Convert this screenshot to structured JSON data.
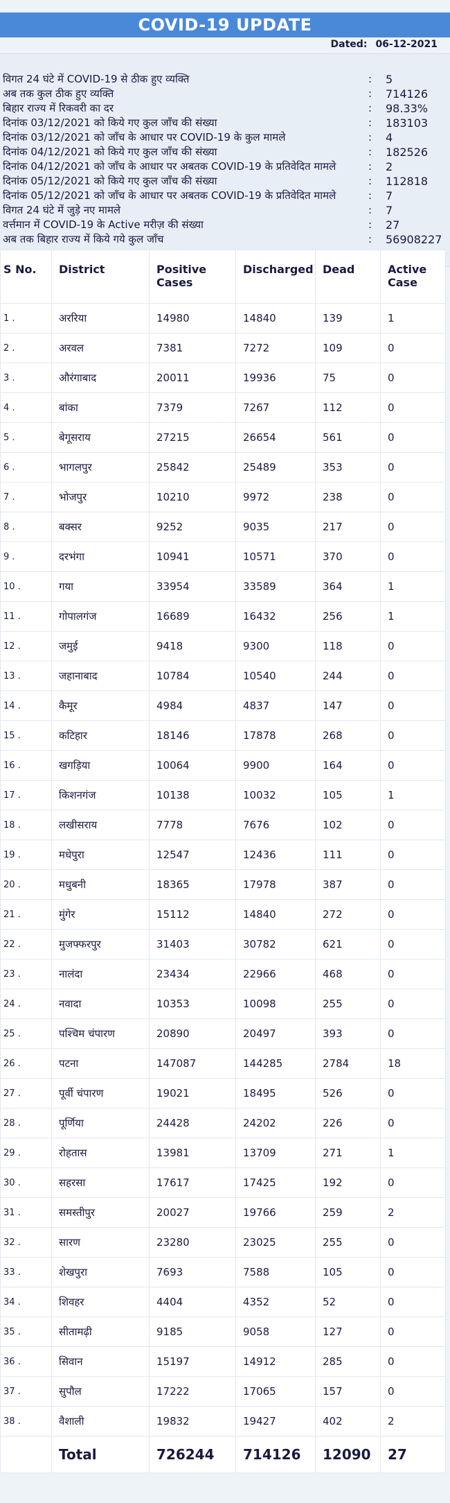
{
  "header": {
    "title": "COVID-19 UPDATE"
  },
  "dated": {
    "label": "Dated:",
    "value": "06-12-2021"
  },
  "summary": [
    {
      "label": "विगत 24 घंटे में COVID-19 से ठीक हुए व्यक्ति",
      "value": "5"
    },
    {
      "label": "अब तक कुल ठीक हुए व्यक्ति",
      "value": "714126"
    },
    {
      "label": "बिहार राज्य में रिकवरी का दर",
      "value": "98.33%"
    },
    {
      "label": "दिनांक 03/12/2021 को किये गए कुल जाँच की संख्या",
      "value": "183103"
    },
    {
      "label": "दिनांक 03/12/2021 को जाँच के आधार पर COVID-19 के कुल मामले",
      "value": "4"
    },
    {
      "label": "दिनांक 04/12/2021 को किये गए कुल जाँच की संख्या",
      "value": "182526"
    },
    {
      "label": "दिनांक 04/12/2021 को जाँच के आधार पर अबतक COVID-19 के प्रतिवेदित मामले",
      "value": "2"
    },
    {
      "label": "दिनांक 05/12/2021 को किये गए कुल जाँच की संख्या",
      "value": "112818"
    },
    {
      "label": "दिनांक 05/12/2021 को जाँच के आधार पर अबतक COVID-19 के प्रतिवेदित मामले",
      "value": "7"
    },
    {
      "label": "विगत 24 घंटे में जुड़े नए मामले",
      "value": "7"
    },
    {
      "label": "वर्त्तमान में COVID-19 के Active मरीज़ की संख्या",
      "value": "27"
    },
    {
      "label": "अब तक बिहार राज्य में किये गये कुल जाँच",
      "value": "56908227"
    }
  ],
  "colon": ":",
  "table": {
    "headers": {
      "sno": "S No.",
      "district": "District",
      "positive": "Positive Cases",
      "discharged": "Discharged",
      "dead": "Dead",
      "active": "Active Case"
    },
    "rows": [
      [
        "1 .",
        "अररिया",
        "14980",
        "14840",
        "139",
        "1"
      ],
      [
        "2 .",
        "अरवल",
        "7381",
        "7272",
        "109",
        "0"
      ],
      [
        "3 .",
        "औरंगाबाद",
        "20011",
        "19936",
        "75",
        "0"
      ],
      [
        "4 .",
        "बांका",
        "7379",
        "7267",
        "112",
        "0"
      ],
      [
        "5 .",
        "बेगूसराय",
        "27215",
        "26654",
        "561",
        "0"
      ],
      [
        "6 .",
        "भागलपुर",
        "25842",
        "25489",
        "353",
        "0"
      ],
      [
        "7 .",
        "भोजपुर",
        "10210",
        "9972",
        "238",
        "0"
      ],
      [
        "8 .",
        "बक्सर",
        "9252",
        "9035",
        "217",
        "0"
      ],
      [
        "9 .",
        "दरभंगा",
        "10941",
        "10571",
        "370",
        "0"
      ],
      [
        "10 .",
        "गया",
        "33954",
        "33589",
        "364",
        "1"
      ],
      [
        "11 .",
        "गोपालगंज",
        "16689",
        "16432",
        "256",
        "1"
      ],
      [
        "12 .",
        "जमुई",
        "9418",
        "9300",
        "118",
        "0"
      ],
      [
        "13 .",
        "जहानाबाद",
        "10784",
        "10540",
        "244",
        "0"
      ],
      [
        "14 .",
        "कैमूर",
        "4984",
        "4837",
        "147",
        "0"
      ],
      [
        "15 .",
        "कटिहार",
        "18146",
        "17878",
        "268",
        "0"
      ],
      [
        "16 .",
        "खगड़िया",
        "10064",
        "9900",
        "164",
        "0"
      ],
      [
        "17 .",
        "किशनगंज",
        "10138",
        "10032",
        "105",
        "1"
      ],
      [
        "18 .",
        "लखीसराय",
        "7778",
        "7676",
        "102",
        "0"
      ],
      [
        "19 .",
        "मधेपुरा",
        "12547",
        "12436",
        "111",
        "0"
      ],
      [
        "20 .",
        "मधुबनी",
        "18365",
        "17978",
        "387",
        "0"
      ],
      [
        "21 .",
        "मुंगेर",
        "15112",
        "14840",
        "272",
        "0"
      ],
      [
        "22 .",
        "मुजफ्फरपुर",
        "31403",
        "30782",
        "621",
        "0"
      ],
      [
        "23 .",
        "नालंदा",
        "23434",
        "22966",
        "468",
        "0"
      ],
      [
        "24 .",
        "नवादा",
        "10353",
        "10098",
        "255",
        "0"
      ],
      [
        "25 .",
        "पश्चिम चंपारण",
        "20890",
        "20497",
        "393",
        "0"
      ],
      [
        "26 .",
        "पटना",
        "147087",
        "144285",
        "2784",
        "18"
      ],
      [
        "27 .",
        "पूर्वी चंपारण",
        "19021",
        "18495",
        "526",
        "0"
      ],
      [
        "28 .",
        "पूर्णिया",
        "24428",
        "24202",
        "226",
        "0"
      ],
      [
        "29 .",
        "रोहतास",
        "13981",
        "13709",
        "271",
        "1"
      ],
      [
        "30 .",
        "सहरसा",
        "17617",
        "17425",
        "192",
        "0"
      ],
      [
        "31 .",
        "समस्तीपुर",
        "20027",
        "19766",
        "259",
        "2"
      ],
      [
        "32 .",
        "सारण",
        "23280",
        "23025",
        "255",
        "0"
      ],
      [
        "33 .",
        "शेखपुरा",
        "7693",
        "7588",
        "105",
        "0"
      ],
      [
        "34 .",
        "शिवहर",
        "4404",
        "4352",
        "52",
        "0"
      ],
      [
        "35 .",
        "सीतामढ़ी",
        "9185",
        "9058",
        "127",
        "0"
      ],
      [
        "36 .",
        "सिवान",
        "15197",
        "14912",
        "285",
        "0"
      ],
      [
        "37 .",
        "सुपौल",
        "17222",
        "17065",
        "157",
        "0"
      ],
      [
        "38 .",
        "वैशाली",
        "19832",
        "19427",
        "402",
        "2"
      ]
    ],
    "total": {
      "label": "Total",
      "positive": "726244",
      "discharged": "714126",
      "dead": "12090",
      "active": "27"
    }
  },
  "colors": {
    "header_bg": "#4a89d8",
    "text": "#1a1a40",
    "page_bg": "#eef3f8"
  }
}
